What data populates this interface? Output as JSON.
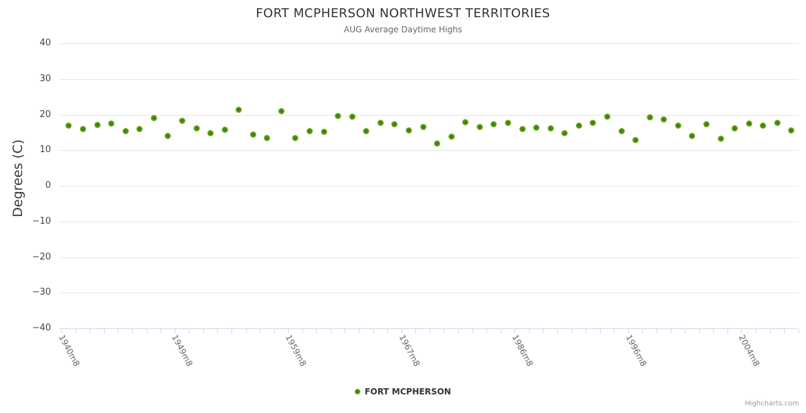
{
  "header": {
    "title": "FORT MCPHERSON NORTHWEST TERRITORIES",
    "subtitle": "AUG Average Daytime Highs"
  },
  "y_axis": {
    "title": "Degrees (C)"
  },
  "legend": {
    "label": "FORT MCPHERSON"
  },
  "credits": {
    "label": "Highcharts.com"
  },
  "colors": {
    "marker_outer": "#7dbf1e",
    "marker_mid": "#559914",
    "marker_inner": "#2f6b11",
    "grid": "#e6e6e6",
    "axis": "#ccd6eb",
    "title": "#333333",
    "subtitle": "#666666",
    "axis_label": "#666666",
    "legend_text": "#333333",
    "credits": "#999999"
  },
  "chart_data": {
    "type": "scatter",
    "title": "FORT MCPHERSON NORTHWEST TERRITORIES",
    "subtitle": "AUG Average Daytime Highs",
    "xlabel": "",
    "ylabel": "Degrees (C)",
    "ylim": [
      -40,
      40
    ],
    "y_ticks": [
      40,
      30,
      20,
      10,
      0,
      -10,
      -20,
      -30,
      -40
    ],
    "grid": "horizontal-only",
    "legend_position": "bottom-center",
    "x_type": "category",
    "x_tick_labels": [
      {
        "index": 0,
        "label": "1940m8"
      },
      {
        "index": 8,
        "label": "1949m8"
      },
      {
        "index": 16,
        "label": "1959m8"
      },
      {
        "index": 24,
        "label": "1967m8"
      },
      {
        "index": 32,
        "label": "1986m8"
      },
      {
        "index": 40,
        "label": "1996m8"
      },
      {
        "index": 48,
        "label": "2004m8"
      }
    ],
    "series": [
      {
        "name": "FORT MCPHERSON",
        "color": "#7dbf1e",
        "values": [
          17.0,
          16.0,
          17.1,
          17.5,
          15.4,
          16.0,
          19.0,
          14.0,
          18.3,
          16.1,
          14.7,
          15.7,
          21.3,
          14.3,
          13.4,
          21.0,
          13.5,
          15.4,
          15.1,
          19.6,
          19.4,
          15.4,
          17.6,
          17.2,
          15.5,
          16.5,
          11.9,
          13.9,
          17.9,
          16.5,
          17.3,
          17.6,
          16.0,
          16.3,
          16.2,
          14.7,
          17.0,
          17.6,
          19.5,
          15.4,
          12.9,
          19.2,
          18.7,
          16.9,
          14.0,
          17.3,
          13.3,
          16.1,
          17.4,
          16.9,
          17.6,
          15.5
        ]
      }
    ]
  }
}
